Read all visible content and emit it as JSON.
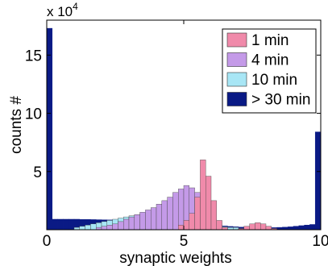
{
  "chart_data": {
    "type": "bar",
    "xlabel": "synaptic weights",
    "ylabel": "counts #",
    "multiplier": {
      "base": "x 10",
      "exp": "4"
    },
    "xlim": [
      0,
      10
    ],
    "ylim": [
      0,
      18
    ],
    "xticks": [
      0,
      5,
      10
    ],
    "yticks": [
      5,
      10,
      15
    ],
    "grid": false,
    "legend_position": "top-right",
    "bin_width": 0.2,
    "series": [
      {
        "name": "1 min",
        "color": "#f08aaa",
        "bins": [
          [
            4.8,
            0.4
          ],
          [
            5.0,
            0.8
          ],
          [
            5.2,
            1.4
          ],
          [
            5.4,
            2.8
          ],
          [
            5.6,
            6.0
          ],
          [
            5.8,
            4.6
          ],
          [
            6.0,
            2.5
          ],
          [
            6.2,
            0.8
          ],
          [
            6.4,
            0.2
          ],
          [
            7.0,
            0.1
          ],
          [
            7.2,
            0.3
          ],
          [
            7.4,
            0.5
          ],
          [
            7.6,
            0.6
          ],
          [
            7.8,
            0.5
          ],
          [
            8.0,
            0.3
          ],
          [
            8.2,
            0.1
          ]
        ]
      },
      {
        "name": "4 min",
        "color": "#c49ae8",
        "bins": [
          [
            1.8,
            0.2
          ],
          [
            2.0,
            0.3
          ],
          [
            2.2,
            0.4
          ],
          [
            2.4,
            0.5
          ],
          [
            2.6,
            0.7
          ],
          [
            2.8,
            0.9
          ],
          [
            3.0,
            1.1
          ],
          [
            3.2,
            1.3
          ],
          [
            3.4,
            1.5
          ],
          [
            3.6,
            1.7
          ],
          [
            3.8,
            1.9
          ],
          [
            4.0,
            2.2
          ],
          [
            4.2,
            2.5
          ],
          [
            4.4,
            2.8
          ],
          [
            4.6,
            3.2
          ],
          [
            4.8,
            3.5
          ],
          [
            5.0,
            3.8
          ],
          [
            5.2,
            3.6
          ],
          [
            5.4,
            3.2
          ],
          [
            5.6,
            2.4
          ],
          [
            5.8,
            1.6
          ],
          [
            6.0,
            0.9
          ],
          [
            6.2,
            0.4
          ],
          [
            6.4,
            0.1
          ]
        ]
      },
      {
        "name": "10 min",
        "color": "#a8e6f5",
        "bins": [
          [
            1.0,
            0.2
          ],
          [
            1.2,
            0.3
          ],
          [
            1.4,
            0.4
          ],
          [
            1.6,
            0.5
          ],
          [
            1.8,
            0.6
          ],
          [
            2.0,
            0.7
          ],
          [
            2.2,
            0.8
          ],
          [
            2.4,
            0.9
          ],
          [
            2.6,
            1.0
          ],
          [
            2.8,
            1.1
          ],
          [
            3.0,
            1.2
          ],
          [
            3.2,
            1.3
          ],
          [
            3.4,
            1.4
          ],
          [
            3.6,
            1.45
          ],
          [
            3.8,
            1.5
          ],
          [
            4.0,
            1.5
          ],
          [
            4.2,
            1.45
          ],
          [
            4.4,
            1.4
          ],
          [
            4.6,
            1.3
          ],
          [
            4.8,
            1.2
          ],
          [
            5.0,
            1.0
          ],
          [
            5.2,
            0.9
          ],
          [
            5.4,
            0.7
          ],
          [
            5.6,
            0.6
          ],
          [
            5.8,
            0.45
          ],
          [
            6.0,
            0.35
          ],
          [
            6.2,
            0.3
          ],
          [
            6.4,
            0.25
          ],
          [
            6.6,
            0.2
          ],
          [
            6.8,
            0.2
          ]
        ]
      },
      {
        "name": "> 30 min",
        "color": "#0a1a85",
        "bins": [
          [
            0.0,
            17.3
          ],
          [
            0.2,
            0.9
          ],
          [
            0.4,
            0.9
          ],
          [
            0.6,
            0.9
          ],
          [
            0.8,
            0.9
          ],
          [
            1.0,
            0.9
          ],
          [
            1.2,
            0.88
          ],
          [
            1.4,
            0.88
          ],
          [
            1.6,
            0.87
          ],
          [
            1.8,
            0.86
          ],
          [
            2.0,
            0.85
          ],
          [
            2.2,
            0.84
          ],
          [
            2.4,
            0.83
          ],
          [
            2.6,
            0.82
          ],
          [
            2.8,
            0.8
          ],
          [
            3.0,
            0.78
          ],
          [
            3.2,
            0.76
          ],
          [
            3.4,
            0.74
          ],
          [
            3.6,
            0.72
          ],
          [
            3.8,
            0.7
          ],
          [
            4.0,
            0.68
          ],
          [
            4.2,
            0.66
          ],
          [
            4.4,
            0.64
          ],
          [
            4.6,
            0.62
          ],
          [
            4.8,
            0.6
          ],
          [
            5.0,
            0.58
          ],
          [
            5.2,
            0.55
          ],
          [
            5.4,
            0.52
          ],
          [
            5.6,
            0.48
          ],
          [
            5.8,
            0.44
          ],
          [
            6.0,
            0.4
          ],
          [
            6.2,
            0.36
          ],
          [
            6.4,
            0.32
          ],
          [
            6.6,
            0.28
          ],
          [
            6.8,
            0.25
          ],
          [
            7.0,
            0.22
          ],
          [
            7.2,
            0.2
          ],
          [
            7.4,
            0.18
          ],
          [
            7.6,
            0.18
          ],
          [
            7.8,
            0.18
          ],
          [
            8.0,
            0.18
          ],
          [
            8.2,
            0.18
          ],
          [
            8.4,
            0.2
          ],
          [
            8.6,
            0.22
          ],
          [
            8.8,
            0.25
          ],
          [
            9.0,
            0.3
          ],
          [
            9.2,
            0.35
          ],
          [
            9.4,
            0.4
          ],
          [
            9.6,
            0.45
          ],
          [
            9.8,
            8.4
          ]
        ]
      }
    ]
  }
}
